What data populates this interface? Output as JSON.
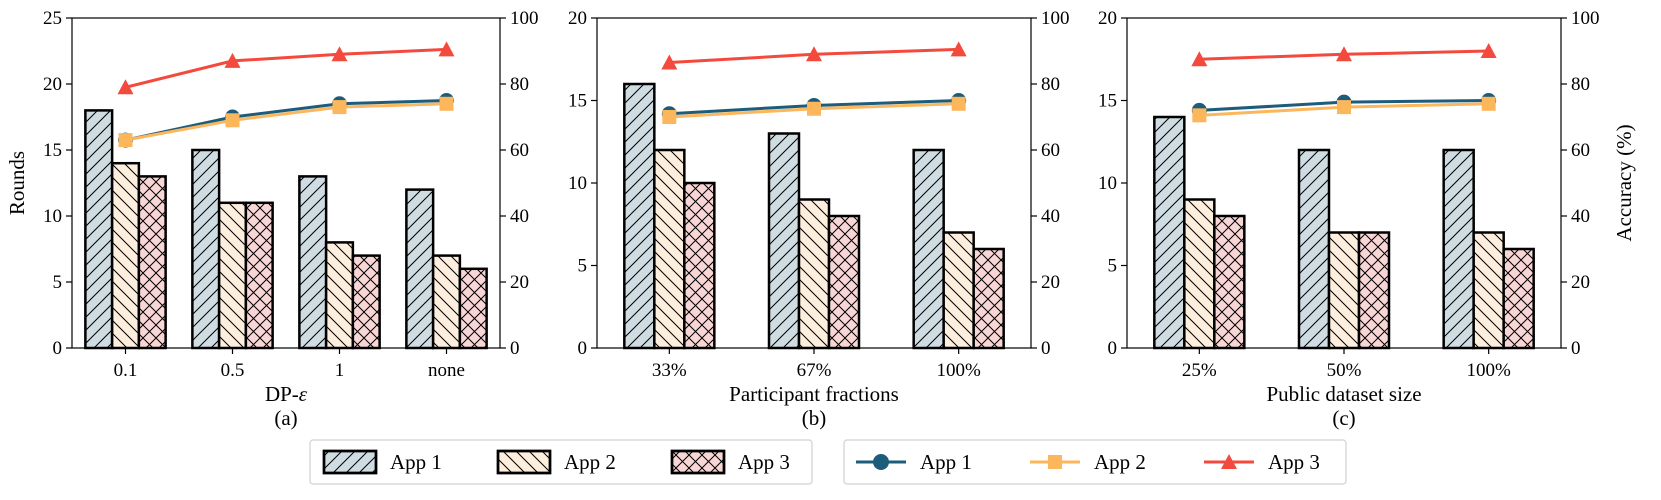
{
  "colors": {
    "bar_app1": "#cfdde3",
    "bar_app2": "#fdeedd",
    "bar_app3": "#f9d6d6",
    "line_app1": "#1d5c7a",
    "line_app2": "#fcb75c",
    "line_app3": "#f44a3e"
  },
  "legend": {
    "bars": [
      "App 1",
      "App 2",
      "App 3"
    ],
    "lines": [
      "App 1",
      "App 2",
      "App 3"
    ]
  },
  "chart_data": [
    {
      "type": "bar+line",
      "panel_label": "(a)",
      "xlabel": "DP-ε",
      "xlabel_prefix": "DP-",
      "xlabel_symbol": "ε",
      "ylabel_left": "Rounds",
      "ylabel_right": "",
      "ylim_left": [
        0,
        25
      ],
      "yticks_left": [
        0,
        5,
        10,
        15,
        20,
        25
      ],
      "ylim_right": [
        0,
        100
      ],
      "yticks_right": [
        0,
        20,
        40,
        60,
        80,
        100
      ],
      "categories": [
        "0.1",
        "0.5",
        "1",
        "none"
      ],
      "bar_series": [
        {
          "name": "App 1",
          "values": [
            18,
            15,
            13,
            12
          ]
        },
        {
          "name": "App 2",
          "values": [
            14,
            11,
            8,
            7
          ]
        },
        {
          "name": "App 3",
          "values": [
            13,
            11,
            7,
            6
          ]
        }
      ],
      "line_series": [
        {
          "name": "App 1",
          "values": [
            63,
            70,
            74,
            75
          ]
        },
        {
          "name": "App 2",
          "values": [
            63,
            69,
            73,
            74
          ]
        },
        {
          "name": "App 3",
          "values": [
            79,
            87,
            89,
            90.5
          ]
        }
      ]
    },
    {
      "type": "bar+line",
      "panel_label": "(b)",
      "xlabel": "Participant fractions",
      "ylabel_left": "",
      "ylabel_right": "",
      "ylim_left": [
        0,
        20
      ],
      "yticks_left": [
        0,
        5,
        10,
        15,
        20
      ],
      "ylim_right": [
        0,
        100
      ],
      "yticks_right": [
        0,
        20,
        40,
        60,
        80,
        100
      ],
      "categories": [
        "33%",
        "67%",
        "100%"
      ],
      "bar_series": [
        {
          "name": "App 1",
          "values": [
            16,
            13,
            12
          ]
        },
        {
          "name": "App 2",
          "values": [
            12,
            9,
            7
          ]
        },
        {
          "name": "App 3",
          "values": [
            10,
            8,
            6
          ]
        }
      ],
      "line_series": [
        {
          "name": "App 1",
          "values": [
            71,
            73.5,
            75
          ]
        },
        {
          "name": "App 2",
          "values": [
            70,
            72.5,
            74
          ]
        },
        {
          "name": "App 3",
          "values": [
            86.5,
            89,
            90.5
          ]
        }
      ]
    },
    {
      "type": "bar+line",
      "panel_label": "(c)",
      "xlabel": "Public dataset size",
      "ylabel_left": "",
      "ylabel_right": "Accuracy (%)",
      "ylim_left": [
        0,
        20
      ],
      "yticks_left": [
        0,
        5,
        10,
        15,
        20
      ],
      "ylim_right": [
        0,
        100
      ],
      "yticks_right": [
        0,
        20,
        40,
        60,
        80,
        100
      ],
      "categories": [
        "25%",
        "50%",
        "100%"
      ],
      "bar_series": [
        {
          "name": "App 1",
          "values": [
            14,
            12,
            12
          ]
        },
        {
          "name": "App 2",
          "values": [
            9,
            7,
            7
          ]
        },
        {
          "name": "App 3",
          "values": [
            8,
            7,
            6
          ]
        }
      ],
      "line_series": [
        {
          "name": "App 1",
          "values": [
            72,
            74.5,
            75
          ]
        },
        {
          "name": "App 2",
          "values": [
            70.5,
            73,
            74
          ]
        },
        {
          "name": "App 3",
          "values": [
            87.5,
            89,
            90
          ]
        }
      ]
    }
  ]
}
